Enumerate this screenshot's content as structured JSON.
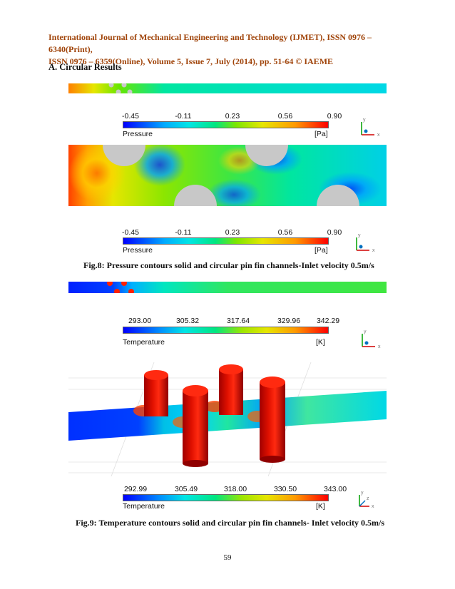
{
  "header": {
    "line1": "International Journal of Mechanical Engineering and Technology (IJMET), ISSN 0976 – 6340(Print),",
    "line2": "ISSN 0976 – 6359(Online), Volume 5, Issue 7, July (2014), pp. 51-64 © IAEME"
  },
  "section_title": "A.  Circular Results",
  "pressure_legend": {
    "ticks": [
      "-0.45",
      "-0.11",
      "0.23",
      "0.56",
      "0.90"
    ],
    "title": "Pressure",
    "unit": "[Pa]"
  },
  "temperature_legend_top": {
    "ticks": [
      "293.00",
      "305.32",
      "317.64",
      "329.96",
      "342.29"
    ],
    "title": "Temperature",
    "unit": "[K]"
  },
  "temperature_legend_bottom": {
    "ticks": [
      "292.99",
      "305.49",
      "318.00",
      "330.50",
      "343.00"
    ],
    "title": "Temperature",
    "unit": "[K]"
  },
  "axis_labels": {
    "x": "x",
    "y": "y",
    "z": "z"
  },
  "fig8_caption": "Fig.8: Pressure contours solid and circular pin fin channels-Inlet velocity 0.5m/s",
  "fig9_caption": "Fig.9: Temperature contours solid and circular pin fin channels- Inlet velocity 0.5m/s",
  "page_number": "59"
}
